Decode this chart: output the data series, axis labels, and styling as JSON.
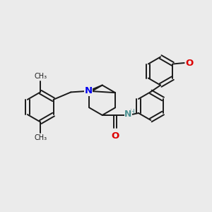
{
  "bg_color": "#ebebeb",
  "bond_color": "#1a1a1a",
  "N_color": "#0000ee",
  "O_color": "#dd0000",
  "NH_color": "#4a9090",
  "line_width": 1.4,
  "font_size": 8.5,
  "fig_w": 3.0,
  "fig_h": 3.0,
  "dpi": 100,
  "xlim": [
    0,
    10
  ],
  "ylim": [
    0,
    10
  ]
}
